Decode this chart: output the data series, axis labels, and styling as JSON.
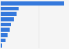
{
  "values": [
    3.35,
    0.93,
    0.82,
    0.68,
    0.56,
    0.48,
    0.35,
    0.24,
    0.08
  ],
  "bar_color": "#3579DC",
  "background_color": "#f5f5f5",
  "grid_color": "#dddddd",
  "xlim": [
    0,
    3.55
  ]
}
